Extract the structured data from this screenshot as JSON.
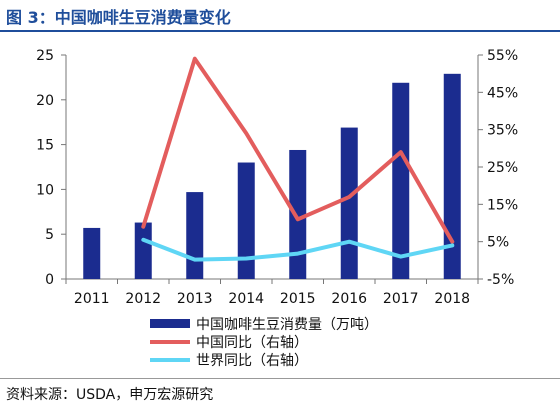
{
  "title": "图 3：中国咖啡生豆消费量变化",
  "source": "资料来源：USDA，申万宏源研究",
  "colors": {
    "bar": "#1b2c8f",
    "china_line": "#e35d5d",
    "world_line": "#5fd6f5",
    "title": "#1f4e9b"
  },
  "chart_data": {
    "type": "bar",
    "categories": [
      "2011",
      "2012",
      "2013",
      "2014",
      "2015",
      "2016",
      "2017",
      "2018"
    ],
    "series": [
      {
        "name": "中国咖啡生豆消费量（万吨）",
        "type": "bar",
        "axis": "left",
        "values": [
          5.7,
          6.3,
          9.7,
          13.0,
          14.4,
          16.9,
          21.9,
          22.9
        ]
      },
      {
        "name": "中国同比（右轴）",
        "type": "line",
        "axis": "right",
        "x": [
          "2012",
          "2013",
          "2014",
          "2015",
          "2016",
          "2017",
          "2018"
        ],
        "values": [
          9,
          54,
          34,
          11,
          17,
          29,
          5
        ]
      },
      {
        "name": "世界同比（右轴）",
        "type": "line",
        "axis": "right",
        "x": [
          "2012",
          "2013",
          "2014",
          "2015",
          "2016",
          "2017",
          "2018"
        ],
        "values": [
          5.5,
          0.2,
          0.5,
          1.8,
          5.0,
          1.0,
          4.0
        ]
      }
    ],
    "left_axis": {
      "ylim": [
        0,
        25
      ],
      "ticks": [
        "0",
        "5",
        "10",
        "15",
        "20",
        "25"
      ]
    },
    "right_axis": {
      "ylim": [
        -5,
        55
      ],
      "ticks": [
        "-5%",
        "5%",
        "15%",
        "25%",
        "35%",
        "45%",
        "55%"
      ]
    },
    "legend_position": "bottom",
    "grid": false
  }
}
